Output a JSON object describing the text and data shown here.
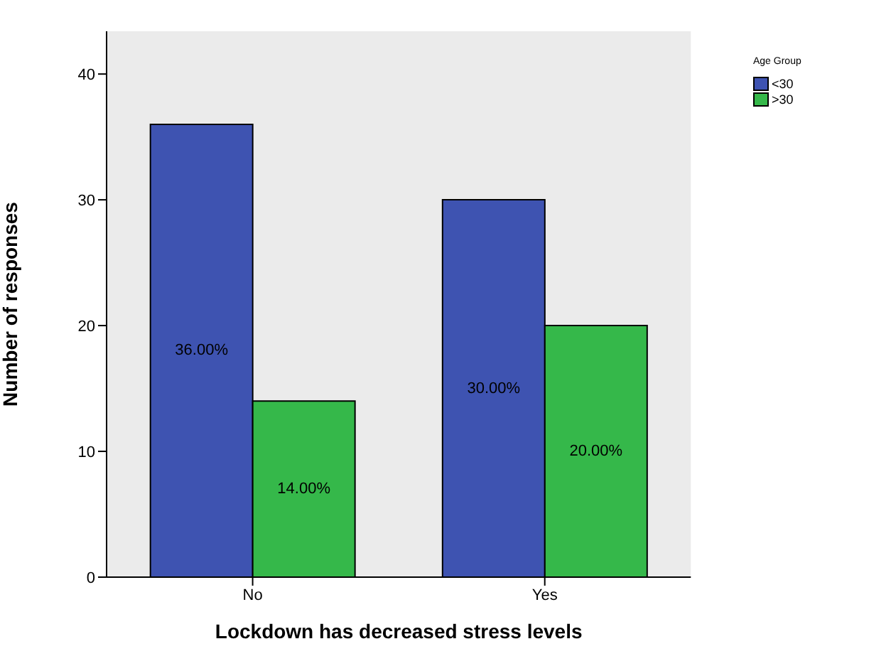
{
  "chart_data": {
    "type": "bar",
    "xlabel": "Lockdown has decreased  stress levels",
    "ylabel": "Number of responses",
    "legend_title": "Age Group",
    "categories": [
      "No",
      "Yes"
    ],
    "series": [
      {
        "name": "<30",
        "color": "#3e53b1",
        "values": [
          36,
          30
        ],
        "value_labels": [
          "36.00%",
          "30.00%"
        ]
      },
      {
        "name": ">30",
        "color": "#35b84a",
        "values": [
          14,
          20
        ],
        "value_labels": [
          "14.00%",
          "20.00%"
        ]
      }
    ],
    "ylim": [
      0,
      43.4
    ],
    "yticks": [
      0,
      10,
      20,
      30,
      40
    ],
    "grid": false,
    "legend": "top right"
  }
}
